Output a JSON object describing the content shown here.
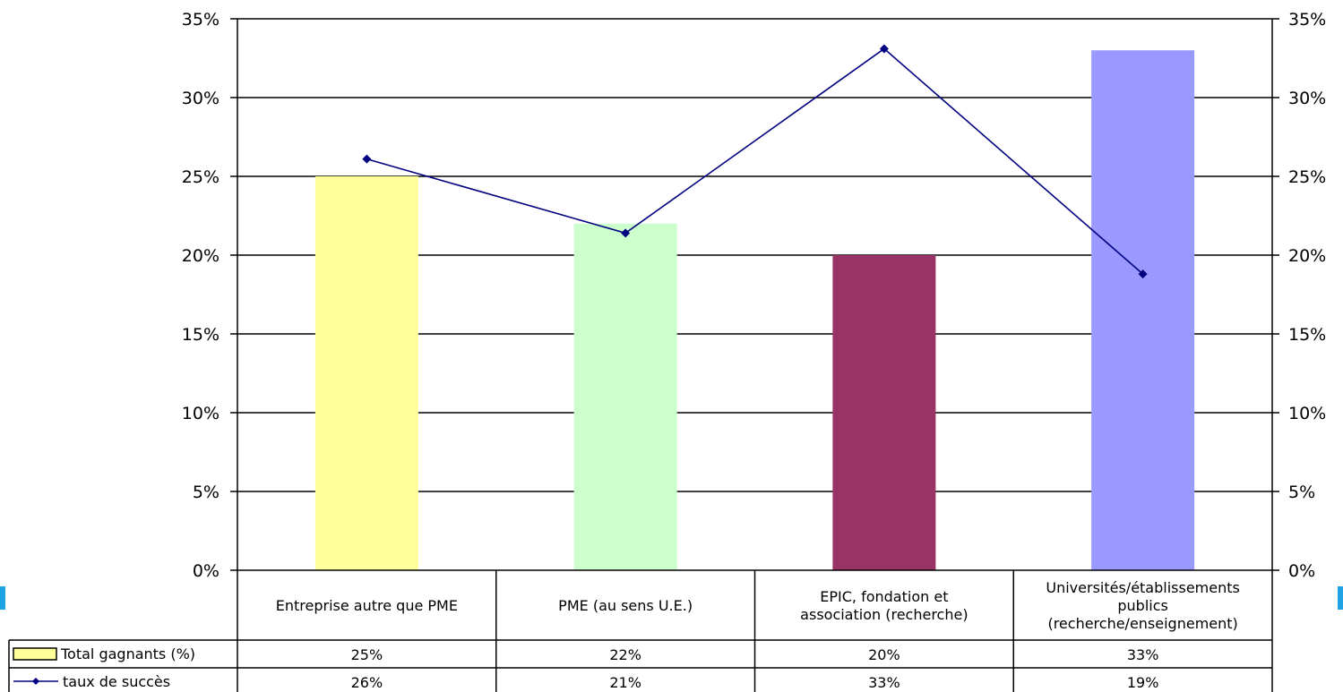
{
  "chart_data": {
    "type": "bar",
    "categories": [
      [
        "Entreprise autre que PME"
      ],
      [
        "PME (au sens U.E.)"
      ],
      [
        "EPIC, fondation et",
        "association (recherche)"
      ],
      [
        "Universités/établissements",
        "publics",
        "(recherche/enseignement)"
      ]
    ],
    "series": [
      {
        "name": "Total gagnants (%)",
        "type": "bar",
        "values": [
          25,
          22,
          20,
          33
        ],
        "labels": [
          "25%",
          "22%",
          "20%",
          "33%"
        ],
        "colors": [
          "#ffff99",
          "#ccffcc",
          "#993366",
          "#9999ff"
        ]
      },
      {
        "name": "taux de succès",
        "type": "line",
        "values": [
          26.1,
          21.4,
          33.1,
          18.8
        ],
        "labels": [
          "26%",
          "21%",
          "33%",
          "19%"
        ],
        "color": "#000080"
      }
    ],
    "ylim": [
      0,
      35
    ],
    "y2lim": [
      0,
      35
    ],
    "yticks": [
      "0%",
      "5%",
      "10%",
      "15%",
      "20%",
      "25%",
      "30%",
      "35%"
    ],
    "grid": true,
    "legend": "data table (bottom-left)"
  }
}
